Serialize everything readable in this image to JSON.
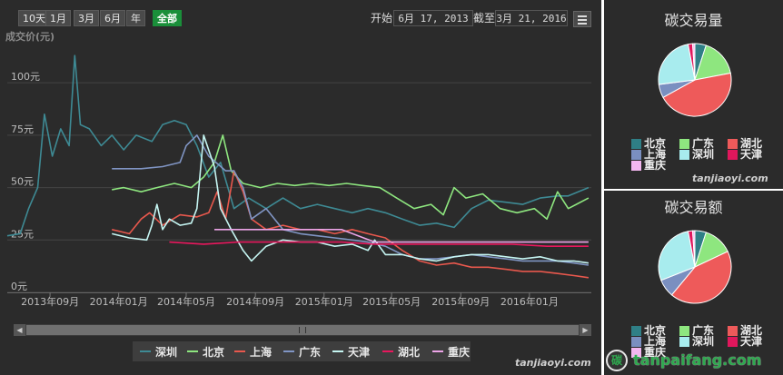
{
  "range_buttons": [
    "10天",
    "1月",
    "3月",
    "6月",
    "年",
    "全部"
  ],
  "active_range": "全部",
  "date_range": {
    "start_label": "开始",
    "start_value": "6月 17, 2013",
    "end_label": "截至",
    "end_value": "3月 21, 2016"
  },
  "chart_data": {
    "type": "line",
    "title": "",
    "ylabel": "成交价(元)",
    "ylim": [
      0,
      120
    ],
    "yticks": [
      0,
      25,
      50,
      75,
      100
    ],
    "ytick_labels": [
      "0元",
      "25元",
      "50元",
      "75元",
      "100元"
    ],
    "xlim": [
      "2013-06-17",
      "2016-04-20"
    ],
    "xticks": [
      "2013-09-01",
      "2014-01-01",
      "2014-05-01",
      "2014-09-01",
      "2015-01-01",
      "2015-05-01",
      "2015-09-01",
      "2016-01-01"
    ],
    "xtick_labels": [
      "2013年09月",
      "2014年01月",
      "2014年05月",
      "2014年09月",
      "2015年01月",
      "2015年05月",
      "2015年09月",
      "2016年01月"
    ],
    "legend_position": "bottom",
    "series": [
      {
        "name": "深圳",
        "color": "#3e8a94",
        "points": [
          [
            "2013-06-17",
            27
          ],
          [
            "2013-07-10",
            28
          ],
          [
            "2013-07-25",
            40
          ],
          [
            "2013-08-10",
            50
          ],
          [
            "2013-08-22",
            85
          ],
          [
            "2013-09-05",
            65
          ],
          [
            "2013-09-20",
            78
          ],
          [
            "2013-10-05",
            70
          ],
          [
            "2013-10-15",
            113
          ],
          [
            "2013-10-25",
            80
          ],
          [
            "2013-11-10",
            78
          ],
          [
            "2013-12-01",
            70
          ],
          [
            "2013-12-20",
            75
          ],
          [
            "2014-01-10",
            68
          ],
          [
            "2014-02-01",
            75
          ],
          [
            "2014-03-01",
            72
          ],
          [
            "2014-03-20",
            80
          ],
          [
            "2014-04-10",
            82
          ],
          [
            "2014-05-01",
            80
          ],
          [
            "2014-05-20",
            70
          ],
          [
            "2014-06-10",
            55
          ],
          [
            "2014-07-01",
            62
          ],
          [
            "2014-07-25",
            40
          ],
          [
            "2014-08-20",
            45
          ],
          [
            "2014-09-20",
            40
          ],
          [
            "2014-10-20",
            45
          ],
          [
            "2014-11-20",
            40
          ],
          [
            "2014-12-20",
            42
          ],
          [
            "2015-01-20",
            40
          ],
          [
            "2015-02-20",
            38
          ],
          [
            "2015-03-20",
            40
          ],
          [
            "2015-04-20",
            38
          ],
          [
            "2015-05-20",
            35
          ],
          [
            "2015-06-20",
            32
          ],
          [
            "2015-07-20",
            33
          ],
          [
            "2015-08-20",
            31
          ],
          [
            "2015-09-20",
            40
          ],
          [
            "2015-10-20",
            44
          ],
          [
            "2015-11-20",
            43
          ],
          [
            "2015-12-20",
            42
          ],
          [
            "2016-01-20",
            45
          ],
          [
            "2016-02-20",
            46
          ],
          [
            "2016-03-10",
            46
          ],
          [
            "2016-04-15",
            50
          ]
        ]
      },
      {
        "name": "北京",
        "color": "#8ee67f",
        "points": [
          [
            "2013-12-20",
            49
          ],
          [
            "2014-01-10",
            50
          ],
          [
            "2014-02-10",
            48
          ],
          [
            "2014-03-10",
            50
          ],
          [
            "2014-04-10",
            52
          ],
          [
            "2014-05-10",
            50
          ],
          [
            "2014-06-01",
            55
          ],
          [
            "2014-06-20",
            62
          ],
          [
            "2014-07-05",
            75
          ],
          [
            "2014-07-20",
            58
          ],
          [
            "2014-08-10",
            52
          ],
          [
            "2014-09-10",
            50
          ],
          [
            "2014-10-10",
            52
          ],
          [
            "2014-11-10",
            51
          ],
          [
            "2014-12-10",
            52
          ],
          [
            "2015-01-10",
            51
          ],
          [
            "2015-02-10",
            52
          ],
          [
            "2015-03-10",
            51
          ],
          [
            "2015-04-10",
            50
          ],
          [
            "2015-05-10",
            45
          ],
          [
            "2015-06-10",
            40
          ],
          [
            "2015-07-10",
            42
          ],
          [
            "2015-08-01",
            37
          ],
          [
            "2015-08-20",
            50
          ],
          [
            "2015-09-10",
            45
          ],
          [
            "2015-10-10",
            47
          ],
          [
            "2015-11-10",
            40
          ],
          [
            "2015-12-10",
            38
          ],
          [
            "2016-01-10",
            40
          ],
          [
            "2016-02-01",
            35
          ],
          [
            "2016-02-20",
            48
          ],
          [
            "2016-03-10",
            40
          ],
          [
            "2016-04-15",
            45
          ]
        ]
      },
      {
        "name": "上海",
        "color": "#e8584d",
        "points": [
          [
            "2013-12-20",
            30
          ],
          [
            "2014-01-20",
            28
          ],
          [
            "2014-02-10",
            35
          ],
          [
            "2014-02-25",
            38
          ],
          [
            "2014-03-20",
            32
          ],
          [
            "2014-04-20",
            37
          ],
          [
            "2014-05-20",
            36
          ],
          [
            "2014-06-10",
            38
          ],
          [
            "2014-06-25",
            48
          ],
          [
            "2014-07-10",
            35
          ],
          [
            "2014-07-25",
            58
          ],
          [
            "2014-08-10",
            48
          ],
          [
            "2014-08-25",
            35
          ],
          [
            "2014-09-20",
            30
          ],
          [
            "2014-10-20",
            32
          ],
          [
            "2014-11-20",
            30
          ],
          [
            "2014-12-20",
            30
          ],
          [
            "2015-01-20",
            28
          ],
          [
            "2015-02-20",
            30
          ],
          [
            "2015-03-20",
            28
          ],
          [
            "2015-04-20",
            26
          ],
          [
            "2015-05-20",
            20
          ],
          [
            "2015-06-20",
            15
          ],
          [
            "2015-07-20",
            13
          ],
          [
            "2015-08-20",
            14
          ],
          [
            "2015-09-20",
            12
          ],
          [
            "2015-10-20",
            12
          ],
          [
            "2015-11-20",
            11
          ],
          [
            "2015-12-20",
            10
          ],
          [
            "2016-01-20",
            10
          ],
          [
            "2016-02-20",
            9
          ],
          [
            "2016-03-20",
            8
          ],
          [
            "2016-04-15",
            7
          ]
        ]
      },
      {
        "name": "广东",
        "color": "#8095c4",
        "points": [
          [
            "2013-12-20",
            59
          ],
          [
            "2014-02-10",
            59
          ],
          [
            "2014-03-20",
            60
          ],
          [
            "2014-04-20",
            62
          ],
          [
            "2014-05-01",
            70
          ],
          [
            "2014-05-20",
            75
          ],
          [
            "2014-06-10",
            65
          ],
          [
            "2014-07-10",
            58
          ],
          [
            "2014-07-25",
            58
          ],
          [
            "2014-08-10",
            50
          ],
          [
            "2014-08-25",
            35
          ],
          [
            "2014-09-20",
            40
          ],
          [
            "2014-10-20",
            30
          ],
          [
            "2014-11-20",
            28
          ],
          [
            "2014-12-20",
            27
          ],
          [
            "2015-01-20",
            26
          ],
          [
            "2015-02-20",
            25
          ],
          [
            "2015-03-20",
            24
          ],
          [
            "2015-04-20",
            22
          ],
          [
            "2015-05-20",
            18
          ],
          [
            "2015-06-20",
            16
          ],
          [
            "2015-07-20",
            16
          ],
          [
            "2015-08-20",
            17
          ],
          [
            "2015-09-20",
            18
          ],
          [
            "2015-10-20",
            17
          ],
          [
            "2015-11-20",
            16
          ],
          [
            "2015-12-20",
            15
          ],
          [
            "2016-01-20",
            15
          ],
          [
            "2016-02-20",
            15
          ],
          [
            "2016-03-20",
            14
          ],
          [
            "2016-04-15",
            13
          ]
        ]
      },
      {
        "name": "天津",
        "color": "#c5f5f2",
        "points": [
          [
            "2013-12-20",
            28
          ],
          [
            "2014-01-20",
            26
          ],
          [
            "2014-02-20",
            25
          ],
          [
            "2014-03-01",
            32
          ],
          [
            "2014-03-10",
            42
          ],
          [
            "2014-03-20",
            30
          ],
          [
            "2014-04-01",
            35
          ],
          [
            "2014-04-20",
            32
          ],
          [
            "2014-05-10",
            33
          ],
          [
            "2014-05-20",
            40
          ],
          [
            "2014-06-01",
            75
          ],
          [
            "2014-06-20",
            60
          ],
          [
            "2014-07-01",
            40
          ],
          [
            "2014-07-20",
            30
          ],
          [
            "2014-08-10",
            20
          ],
          [
            "2014-08-25",
            15
          ],
          [
            "2014-09-20",
            22
          ],
          [
            "2014-10-20",
            25
          ],
          [
            "2014-11-20",
            24
          ],
          [
            "2014-12-20",
            24
          ],
          [
            "2015-01-20",
            22
          ],
          [
            "2015-02-20",
            23
          ],
          [
            "2015-03-20",
            20
          ],
          [
            "2015-04-01",
            25
          ],
          [
            "2015-04-20",
            18
          ],
          [
            "2015-05-20",
            18
          ],
          [
            "2015-06-20",
            16
          ],
          [
            "2015-07-20",
            15
          ],
          [
            "2015-08-20",
            17
          ],
          [
            "2015-09-20",
            18
          ],
          [
            "2015-10-20",
            18
          ],
          [
            "2015-11-20",
            17
          ],
          [
            "2015-12-20",
            16
          ],
          [
            "2016-01-20",
            17
          ],
          [
            "2016-02-20",
            15
          ],
          [
            "2016-03-20",
            15
          ],
          [
            "2016-04-15",
            14
          ]
        ]
      },
      {
        "name": "湖北",
        "color": "#e8175d",
        "points": [
          [
            "2014-04-01",
            24
          ],
          [
            "2014-06-01",
            23
          ],
          [
            "2014-08-01",
            24
          ],
          [
            "2014-10-01",
            24
          ],
          [
            "2014-12-01",
            24
          ],
          [
            "2015-02-01",
            24
          ],
          [
            "2015-04-01",
            23
          ],
          [
            "2015-06-01",
            23
          ],
          [
            "2015-08-01",
            23
          ],
          [
            "2015-10-01",
            23
          ],
          [
            "2015-12-01",
            23
          ],
          [
            "2016-02-01",
            22
          ],
          [
            "2016-04-15",
            22
          ]
        ]
      },
      {
        "name": "重庆",
        "color": "#eda5e8",
        "points": [
          [
            "2014-06-20",
            30
          ],
          [
            "2014-09-01",
            30
          ],
          [
            "2014-12-01",
            30
          ],
          [
            "2015-02-01",
            30
          ],
          [
            "2015-04-01",
            24
          ],
          [
            "2015-06-01",
            24
          ],
          [
            "2015-09-01",
            24
          ],
          [
            "2015-12-01",
            24
          ],
          [
            "2016-02-01",
            24
          ],
          [
            "2016-04-15",
            24
          ]
        ]
      }
    ]
  },
  "pie_charts": [
    {
      "title": "碳交易量",
      "slices": [
        {
          "name": "北京",
          "value": 5,
          "color": "#2f7f86"
        },
        {
          "name": "广东",
          "value": 17,
          "color": "#8ee67f"
        },
        {
          "name": "湖北",
          "value": 45,
          "color": "#ee5a5a"
        },
        {
          "name": "上海",
          "value": 6,
          "color": "#7a8fc0"
        },
        {
          "name": "深圳",
          "value": 24,
          "color": "#a8ecee"
        },
        {
          "name": "天津",
          "value": 2,
          "color": "#e0175c"
        },
        {
          "name": "重庆",
          "value": 1,
          "color": "#f3b7f0"
        }
      ]
    },
    {
      "title": "碳交易额",
      "slices": [
        {
          "name": "北京",
          "value": 5,
          "color": "#2f7f86"
        },
        {
          "name": "广东",
          "value": 13,
          "color": "#8ee67f"
        },
        {
          "name": "湖北",
          "value": 43,
          "color": "#ee5a5a"
        },
        {
          "name": "上海",
          "value": 8,
          "color": "#7a8fc0"
        },
        {
          "name": "深圳",
          "value": 28,
          "color": "#a8ecee"
        },
        {
          "name": "天津",
          "value": 2,
          "color": "#e0175c"
        },
        {
          "name": "重庆",
          "value": 1,
          "color": "#f3b7f0"
        }
      ]
    }
  ],
  "watermarks": [
    "tanjiaoyi.com",
    "tanjiaoyi.com"
  ],
  "logo": {
    "icon": "碳",
    "text": "tanpaifang.com"
  }
}
